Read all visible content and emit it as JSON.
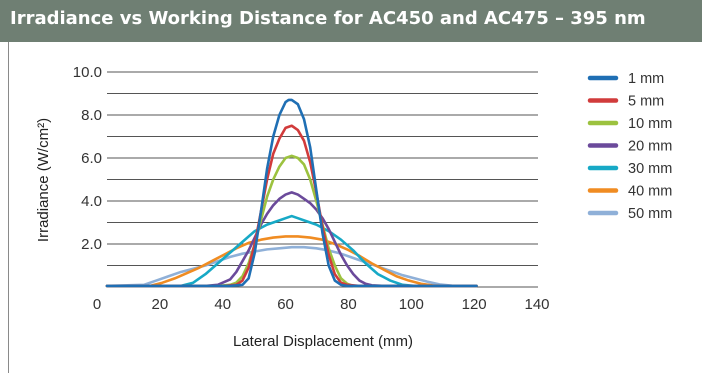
{
  "chart_data": {
    "type": "line",
    "title": "Irradiance vs Working Distance for AC450 and AC475 – 395 nm",
    "xlabel": "Lateral Displacement (mm)",
    "ylabel": "Irradiance (W/cm²)",
    "xlim": [
      0,
      140
    ],
    "ylim": [
      0,
      10
    ],
    "x_ticks": [
      "0",
      "20",
      "40",
      "60",
      "80",
      "100",
      "120",
      "140"
    ],
    "y_ticks": [
      "2.0",
      "4.0",
      "6.0",
      "8.0",
      "10.0"
    ],
    "grid": "horizontal",
    "legend_position": "right",
    "series": [
      {
        "name": "1 mm",
        "color": "#1f6fb4",
        "x": [
          0,
          40,
          44,
          46,
          48,
          50,
          52,
          54,
          56,
          58,
          59,
          60,
          61,
          62,
          64,
          66,
          68,
          70,
          72,
          74,
          76,
          78,
          80,
          120
        ],
        "y": [
          0.05,
          0.05,
          0.1,
          0.4,
          1.6,
          3.5,
          5.5,
          7.0,
          8.0,
          8.6,
          8.7,
          8.7,
          8.6,
          8.5,
          7.8,
          6.5,
          4.5,
          2.5,
          1.0,
          0.3,
          0.1,
          0.05,
          0.05,
          0.05
        ]
      },
      {
        "name": "5 mm",
        "color": "#d13b3b",
        "x": [
          0,
          38,
          42,
          44,
          46,
          48,
          50,
          52,
          54,
          56,
          58,
          60,
          62,
          64,
          66,
          68,
          70,
          72,
          74,
          76,
          78,
          82,
          120
        ],
        "y": [
          0.05,
          0.05,
          0.1,
          0.3,
          0.9,
          2.0,
          3.5,
          5.0,
          6.2,
          6.9,
          7.4,
          7.5,
          7.3,
          6.8,
          5.8,
          4.4,
          2.8,
          1.5,
          0.6,
          0.2,
          0.1,
          0.05,
          0.05
        ]
      },
      {
        "name": "10 mm",
        "color": "#9cc23f",
        "x": [
          0,
          36,
          40,
          42,
          44,
          46,
          48,
          50,
          52,
          54,
          56,
          58,
          60,
          62,
          64,
          66,
          68,
          70,
          72,
          74,
          76,
          78,
          80,
          84,
          120
        ],
        "y": [
          0.05,
          0.05,
          0.1,
          0.2,
          0.5,
          1.1,
          2.0,
          3.1,
          4.2,
          5.0,
          5.6,
          6.0,
          6.1,
          6.0,
          5.7,
          5.0,
          4.0,
          2.9,
          1.8,
          1.0,
          0.4,
          0.15,
          0.05,
          0.05,
          0.05
        ]
      },
      {
        "name": "20 mm",
        "color": "#6b4a9b",
        "x": [
          0,
          32,
          36,
          40,
          42,
          44,
          46,
          48,
          50,
          52,
          54,
          56,
          58,
          60,
          62,
          64,
          66,
          68,
          70,
          72,
          74,
          76,
          78,
          80,
          82,
          84,
          86,
          90,
          120
        ],
        "y": [
          0.05,
          0.05,
          0.1,
          0.35,
          0.7,
          1.2,
          1.7,
          2.3,
          2.9,
          3.4,
          3.8,
          4.1,
          4.3,
          4.4,
          4.3,
          4.1,
          3.9,
          3.6,
          3.2,
          2.7,
          2.1,
          1.5,
          1.0,
          0.6,
          0.3,
          0.15,
          0.08,
          0.05,
          0.05
        ]
      },
      {
        "name": "30 mm",
        "color": "#17a9c6",
        "x": [
          0,
          24,
          28,
          32,
          36,
          40,
          44,
          48,
          52,
          56,
          58,
          60,
          62,
          64,
          68,
          72,
          76,
          80,
          84,
          88,
          92,
          96,
          100,
          120
        ],
        "y": [
          0.05,
          0.05,
          0.2,
          0.6,
          1.1,
          1.6,
          2.1,
          2.6,
          2.9,
          3.1,
          3.2,
          3.3,
          3.2,
          3.1,
          2.9,
          2.6,
          2.2,
          1.7,
          1.1,
          0.6,
          0.3,
          0.1,
          0.05,
          0.05
        ]
      },
      {
        "name": "40 mm",
        "color": "#f08c22",
        "x": [
          0,
          14,
          18,
          22,
          26,
          30,
          34,
          38,
          42,
          46,
          50,
          54,
          58,
          62,
          66,
          70,
          74,
          78,
          82,
          86,
          90,
          94,
          98,
          102,
          106,
          110,
          120
        ],
        "y": [
          0.05,
          0.05,
          0.2,
          0.4,
          0.65,
          0.9,
          1.2,
          1.5,
          1.8,
          2.05,
          2.2,
          2.3,
          2.35,
          2.35,
          2.3,
          2.2,
          2.0,
          1.75,
          1.45,
          1.1,
          0.8,
          0.5,
          0.3,
          0.15,
          0.07,
          0.05,
          0.05
        ]
      },
      {
        "name": "50 mm",
        "color": "#8fb0d8",
        "x": [
          0,
          12,
          16,
          20,
          24,
          28,
          32,
          36,
          40,
          44,
          48,
          52,
          56,
          60,
          64,
          68,
          72,
          76,
          80,
          84,
          88,
          92,
          96,
          100,
          104,
          108,
          112,
          116,
          120
        ],
        "y": [
          0.05,
          0.1,
          0.3,
          0.5,
          0.7,
          0.85,
          1.0,
          1.2,
          1.4,
          1.55,
          1.65,
          1.75,
          1.8,
          1.85,
          1.85,
          1.8,
          1.7,
          1.55,
          1.35,
          1.15,
          0.95,
          0.75,
          0.55,
          0.4,
          0.25,
          0.12,
          0.06,
          0.05,
          0.05
        ]
      }
    ]
  }
}
